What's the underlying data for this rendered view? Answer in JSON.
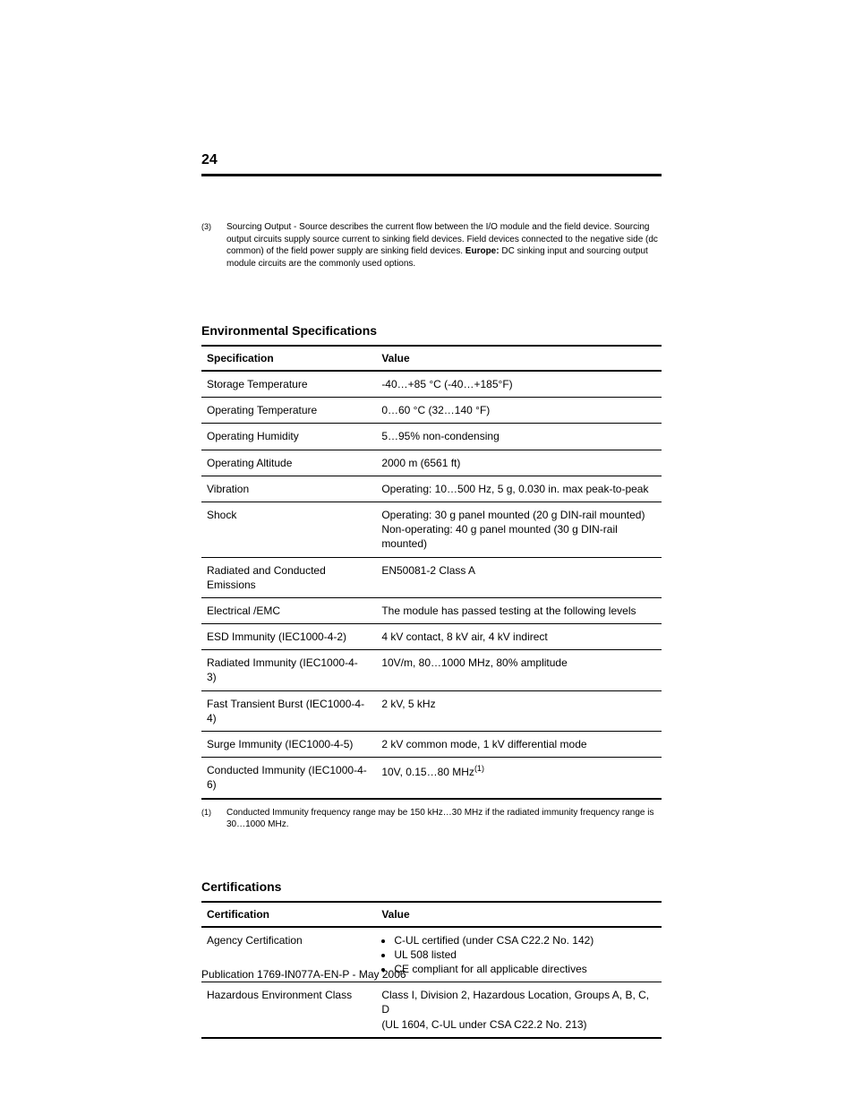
{
  "page_number": "24",
  "footnote3": {
    "marker": "(3)",
    "text_before_bold": "Sourcing Output - Source describes the current flow between the I/O module and the field device. Sourcing output circuits supply source current to sinking field devices. Field devices connected to the negative side (dc common) of the field power supply are sinking field devices. ",
    "bold_word": "Europe:",
    "text_after_bold": " DC sinking input and sourcing output module circuits are the commonly used options."
  },
  "env_section_title": "Environmental Specifications",
  "env_table": {
    "headers": {
      "col1": "Specification",
      "col2": "Value"
    },
    "col_widths": [
      "38%",
      "62%"
    ],
    "rows": [
      {
        "spec": "Storage Temperature",
        "value": "-40…+85 °C (-40…+185°F)"
      },
      {
        "spec": "Operating Temperature",
        "value": "0…60 °C (32…140 °F)"
      },
      {
        "spec": "Operating Humidity",
        "value": "5…95% non-condensing"
      },
      {
        "spec": "Operating Altitude",
        "value": "2000 m (6561 ft)"
      },
      {
        "spec": "Vibration",
        "value": "Operating: 10…500 Hz, 5 g, 0.030 in. max peak-to-peak"
      },
      {
        "spec": "Shock",
        "value": "Operating: 30 g panel mounted (20 g DIN-rail mounted)\nNon-operating: 40 g panel mounted (30 g DIN-rail mounted)"
      },
      {
        "spec": "Radiated and Conducted Emissions",
        "value": "EN50081-2 Class A"
      },
      {
        "spec": "Electrical /EMC",
        "value": "The module has passed testing at the following levels"
      },
      {
        "spec": "ESD Immunity (IEC1000-4-2)",
        "value": "4 kV contact, 8 kV air, 4 kV indirect"
      },
      {
        "spec": "Radiated Immunity (IEC1000-4-3)",
        "value": "10V/m, 80…1000 MHz, 80% amplitude"
      },
      {
        "spec": "Fast Transient Burst (IEC1000-4-4)",
        "value": "2 kV, 5 kHz"
      },
      {
        "spec": "Surge Immunity (IEC1000-4-5)",
        "value": "2 kV common mode, 1 kV differential mode"
      },
      {
        "spec": "Conducted Immunity (IEC1000-4-6)",
        "value": "10V, 0.15…80 MHz",
        "value_sup": "(1)"
      }
    ]
  },
  "env_footnote": {
    "marker": "(1)",
    "text": "Conducted Immunity frequency range may be 150 kHz…30 MHz if the radiated immunity frequency range is 30…1000 MHz."
  },
  "cert_section_title": "Certifications",
  "cert_table": {
    "headers": {
      "col1": "Certification",
      "col2": "Value"
    },
    "col_widths": [
      "38%",
      "62%"
    ],
    "rows": [
      {
        "spec": "Agency Certification",
        "bullets": [
          "C-UL certified (under CSA C22.2 No. 142)",
          "UL 508 listed",
          "CE compliant for all applicable directives"
        ]
      },
      {
        "spec": "Hazardous Environment Class",
        "value": "Class I, Division 2, Hazardous Location, Groups A, B, C, D\n(UL 1604, C-UL under CSA C22.2 No. 213)"
      }
    ]
  },
  "publication_line": "Publication 1769-IN077A-EN-P - May 2006",
  "colors": {
    "text": "#000000",
    "background": "#ffffff",
    "rule": "#000000"
  },
  "fonts": {
    "body_size_pt": 12,
    "footnote_size_pt": 10,
    "heading_size_pt": 14
  }
}
